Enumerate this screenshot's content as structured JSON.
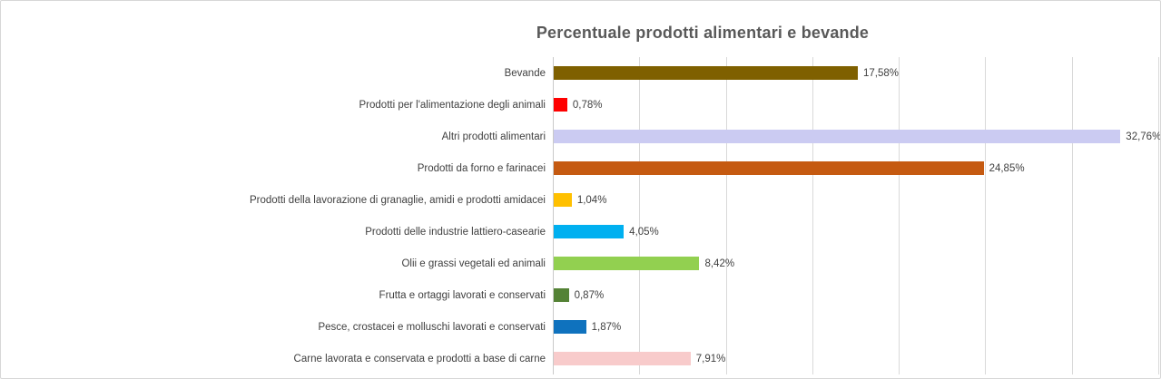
{
  "title": "Percentuale prodotti alimentari e bevande",
  "chart_data": {
    "type": "bar",
    "orientation": "horizontal",
    "title": "Percentuale prodotti alimentari e bevande",
    "xlabel": "",
    "ylabel": "",
    "xlim": [
      0,
      35
    ],
    "gridline_step": 5,
    "grid": "vertical",
    "legend": "none",
    "value_format": "percent-comma-decimal",
    "categories": [
      "Bevande",
      "Prodotti per l'alimentazione degli animali",
      "Altri prodotti alimentari",
      "Prodotti da forno e farinacei",
      "Prodotti della lavorazione di granaglie, amidi e prodotti amidacei",
      "Prodotti delle industrie lattiero-casearie",
      "Olii e grassi vegetali ed animali",
      "Frutta e ortaggi lavorati e conservati",
      "Pesce, crostacei e molluschi lavorati e conservati",
      "Carne lavorata e conservata e prodotti a base di carne"
    ],
    "values": [
      17.58,
      0.78,
      32.76,
      24.85,
      1.04,
      4.05,
      8.42,
      0.87,
      1.87,
      7.91
    ],
    "value_labels": [
      "17,58%",
      "0,78%",
      "32,76%",
      "24,85%",
      "1,04%",
      "4,05%",
      "8,42%",
      "0,87%",
      "1,87%",
      "7,91%"
    ],
    "bar_colors": [
      "#7f6000",
      "#fe0000",
      "#cbcbf2",
      "#c55a11",
      "#ffc000",
      "#00b0f0",
      "#92d050",
      "#548235",
      "#0f72be",
      "#f8cbcb"
    ]
  },
  "styles": {
    "background": "#ffffff",
    "border_color": "#d7d7d7",
    "gridline_color": "#d9d9d9",
    "axis_color": "#c9c9c9",
    "title_color": "#595959",
    "label_color": "#404040"
  }
}
